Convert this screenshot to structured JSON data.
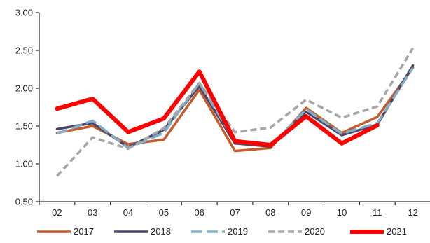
{
  "chart_data": {
    "type": "line",
    "title": "",
    "xlabel": "",
    "ylabel": "",
    "categories": [
      "02",
      "03",
      "04",
      "05",
      "06",
      "07",
      "08",
      "09",
      "10",
      "11",
      "12"
    ],
    "ylim": [
      0.5,
      3.0
    ],
    "yticks": [
      0.5,
      1.0,
      1.5,
      2.0,
      2.5,
      3.0
    ],
    "ytick_labels": [
      "0.50",
      "1.00",
      "1.50",
      "2.00",
      "2.50",
      "3.00"
    ],
    "grid": false,
    "legend_position": "bottom",
    "series": [
      {
        "name": "2017",
        "color": "#C55A2B",
        "style": "solid",
        "values": [
          1.41,
          1.5,
          1.26,
          1.32,
          1.98,
          1.17,
          1.21,
          1.74,
          1.41,
          1.62,
          2.27
        ]
      },
      {
        "name": "2018",
        "color": "#4B4466",
        "style": "solid",
        "values": [
          1.46,
          1.54,
          1.22,
          1.45,
          2.03,
          1.27,
          1.23,
          1.69,
          1.38,
          1.52,
          2.3
        ]
      },
      {
        "name": "2019",
        "color": "#7FAFC6",
        "style": "dash",
        "values": [
          1.4,
          1.57,
          1.21,
          1.41,
          2.07,
          1.3,
          1.24,
          1.72,
          1.4,
          1.54,
          2.27
        ]
      },
      {
        "name": "2020",
        "color": "#A6A6A6",
        "style": "dash",
        "values": [
          0.84,
          1.35,
          1.2,
          1.47,
          2.07,
          1.42,
          1.48,
          1.85,
          1.61,
          1.76,
          2.53
        ]
      },
      {
        "name": "2021",
        "color": "#FF0000",
        "style": "bold",
        "values": [
          1.73,
          1.86,
          1.42,
          1.6,
          2.22,
          1.3,
          1.25,
          1.63,
          1.27,
          1.51,
          null
        ]
      }
    ]
  }
}
